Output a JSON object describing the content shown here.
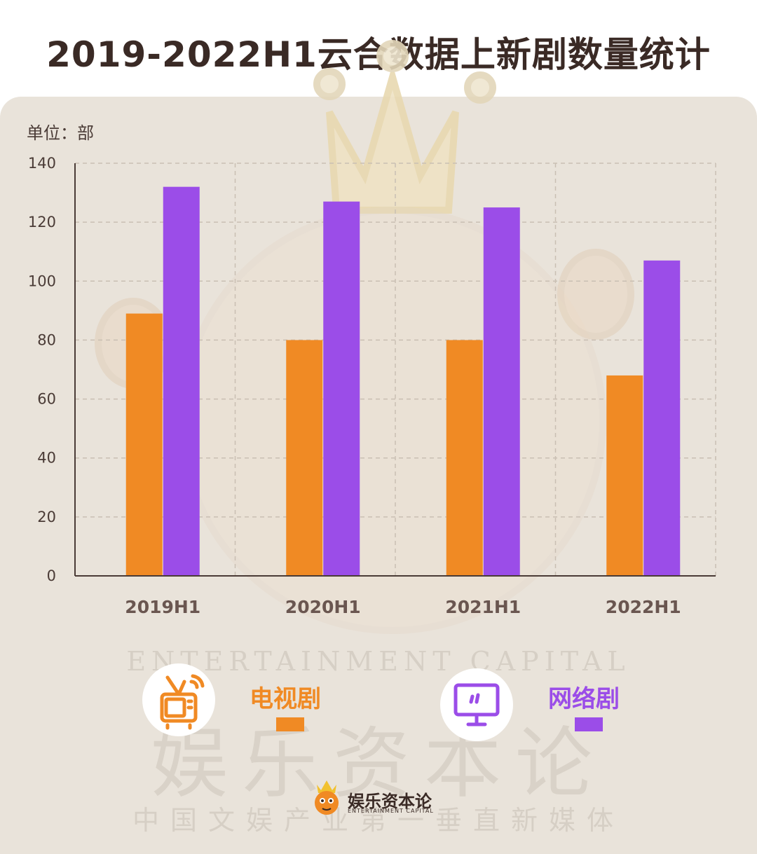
{
  "title": "2019-2022H1云合数据上新剧数量统计",
  "unit_label": "单位：部",
  "chart_data": {
    "type": "bar",
    "title": "2019-2022H1云合数据上新剧数量统计",
    "ylabel": "单位：部",
    "xlabel": "",
    "categories": [
      "2019H1",
      "2020H1",
      "2021H1",
      "2022H1"
    ],
    "series": [
      {
        "name": "电视剧",
        "color": "#f08a24",
        "values": [
          89,
          80,
          80,
          68
        ]
      },
      {
        "name": "网络剧",
        "color": "#9b4de8",
        "values": [
          132,
          127,
          125,
          107
        ]
      }
    ],
    "ylim": [
      0,
      140
    ],
    "yticks": [
      0,
      20,
      40,
      60,
      80,
      100,
      120,
      140
    ],
    "grid": true,
    "legend": "bottom"
  },
  "legend": {
    "tv": {
      "label": "电视剧",
      "icon": "tv-icon",
      "color": "#f08a24"
    },
    "web": {
      "label": "网络剧",
      "icon": "monitor-icon",
      "color": "#9b4de8"
    }
  },
  "watermark": {
    "en": "ENTERTAINMENT CAPITAL",
    "cn": "娱乐资本论",
    "slogan": "中国文娱产业第一垂直新媒体"
  },
  "brand": {
    "name": "娱乐资本论",
    "sub": "ENTERTAINMENT CAPITAL",
    "icon": "crown-mascot-icon"
  }
}
